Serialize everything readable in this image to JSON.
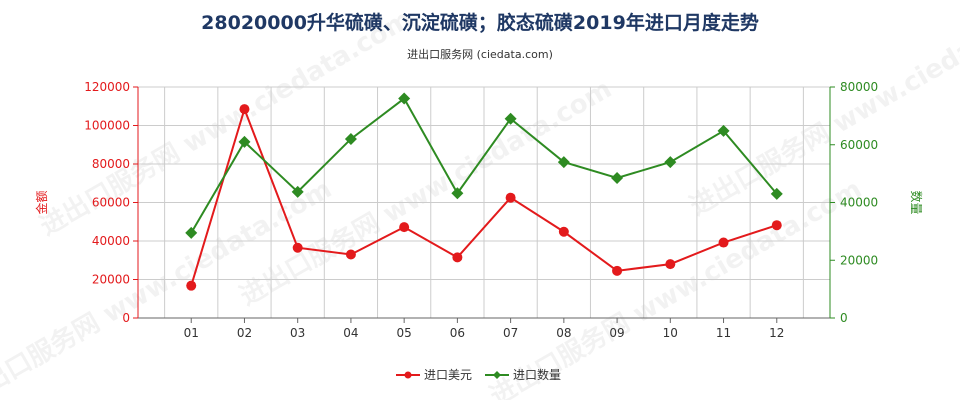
{
  "header": {
    "title": "28020000升华硫磺、沉淀硫磺；胶态硫磺2019年进口月度走势",
    "subtitle": "进出口服务网 (ciedata.com)"
  },
  "watermark": "进出口服务网 www.ciedata.com",
  "colors": {
    "left_series": "#e31a1c",
    "right_series": "#2e8b22",
    "grid": "#cccccc",
    "title": "#1f3864"
  },
  "chart_data": {
    "type": "line",
    "categories": [
      "01",
      "02",
      "03",
      "04",
      "05",
      "06",
      "07",
      "08",
      "09",
      "10",
      "11",
      "12"
    ],
    "series": [
      {
        "name": "进口美元",
        "axis": "left",
        "color": "#e31a1c",
        "marker": "circle",
        "values": [
          16800,
          108500,
          36500,
          33000,
          47200,
          31500,
          62500,
          44800,
          24500,
          28000,
          39200,
          48200
        ]
      },
      {
        "name": "进口数量",
        "axis": "right",
        "color": "#2e8b22",
        "marker": "diamond",
        "values": [
          29500,
          61000,
          43700,
          62000,
          76000,
          43200,
          69000,
          54000,
          48500,
          54000,
          64800,
          43000
        ]
      }
    ],
    "y_left": {
      "label": "金额",
      "range": [
        0,
        120000
      ],
      "ticks": [
        "0",
        "20000",
        "40000",
        "60000",
        "80000",
        "100000",
        "120000"
      ],
      "tick_values": [
        0,
        20000,
        40000,
        60000,
        80000,
        100000,
        120000
      ]
    },
    "y_right": {
      "label": "数量",
      "range": [
        0,
        80000
      ],
      "ticks": [
        "0",
        "20000",
        "40000",
        "60000",
        "80000"
      ],
      "tick_values": [
        0,
        20000,
        40000,
        60000,
        80000
      ]
    },
    "grid": true,
    "legend_position": "bottom-center"
  }
}
